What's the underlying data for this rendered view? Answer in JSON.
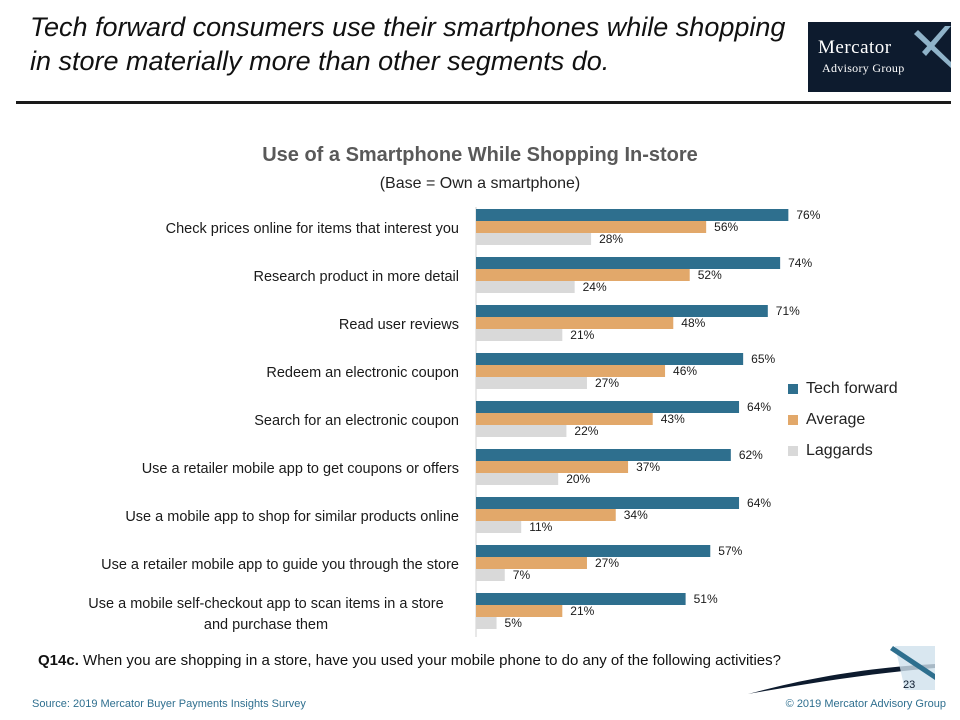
{
  "header": {
    "headline": "Tech forward consumers use their smartphones while shopping in store materially more than other segments do.",
    "logo_line1": "Mercator",
    "logo_line2": "Advisory Group"
  },
  "colors": {
    "tech_forward": "#2e6f8e",
    "average": "#e2a86a",
    "laggards": "#d9d9d9",
    "logo_bg": "#0d1b2e"
  },
  "chart_data": {
    "type": "bar",
    "orientation": "horizontal",
    "title": "Use of a Smartphone While Shopping In-store",
    "subtitle": "(Base = Own a smartphone)",
    "categories": [
      [
        "Check prices online for items that interest you"
      ],
      [
        "Research product in more detail"
      ],
      [
        "Read user reviews"
      ],
      [
        "Redeem an electronic coupon"
      ],
      [
        "Search for an electronic coupon"
      ],
      [
        "Use a retailer mobile app to get coupons or offers"
      ],
      [
        "Use a mobile app to shop for similar products online"
      ],
      [
        "Use a retailer mobile app to guide you through the store"
      ],
      [
        "Use a mobile self-checkout app to scan items in a store",
        "and purchase them"
      ]
    ],
    "series": [
      {
        "name": "Tech forward",
        "values": [
          76,
          74,
          71,
          65,
          64,
          62,
          64,
          57,
          51
        ]
      },
      {
        "name": "Average",
        "values": [
          56,
          52,
          48,
          46,
          43,
          37,
          34,
          27,
          21
        ]
      },
      {
        "name": "Laggards",
        "values": [
          28,
          24,
          21,
          27,
          22,
          20,
          11,
          7,
          5
        ]
      }
    ],
    "value_suffix": "%",
    "xlim": [
      0,
      100
    ],
    "grid": false,
    "legend_position": "right"
  },
  "footer": {
    "question_label": "Q14c.",
    "question_text": "When you are shopping in a store, have you used your mobile phone to do any of the following activities?",
    "source": "Source: 2019 Mercator Buyer Payments Insights Survey",
    "copyright": "© 2019 Mercator Advisory Group",
    "page_number": "23"
  }
}
